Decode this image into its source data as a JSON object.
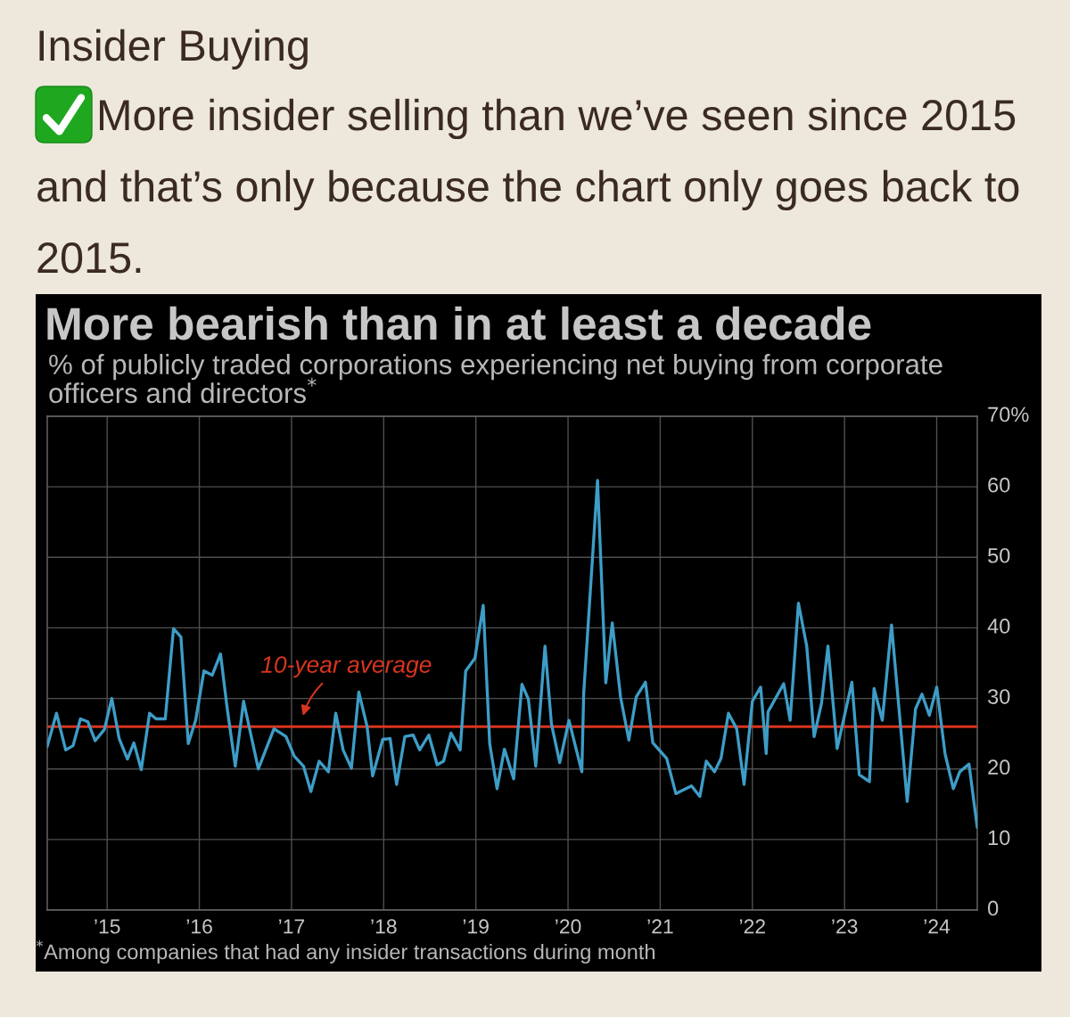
{
  "chart_data": {
    "type": "line",
    "title": "More bearish than in at least a decade",
    "subtitle": "% of publicly traded corporations experiencing net buying from corporate\nofficers and directors$^{*}$",
    "annotations": [
      "Insider Buying",
      "More insider selling than we’ve seen since 2015\nand that’s only because the chart only goes back to\n2015.",
      "$^{*}$Among companies that had any insider transactions during month"
    ],
    "x": [
      2014.35,
      2014.45,
      2014.55,
      2014.63,
      2014.71,
      2014.79,
      2014.87,
      2014.97,
      2015.05,
      2015.13,
      2015.22,
      2015.29,
      2015.37,
      2015.46,
      2015.53,
      2015.63,
      2015.72,
      2015.8,
      2015.88,
      2015.96,
      2016.05,
      2016.14,
      2016.23,
      2016.3,
      2016.39,
      2016.48,
      2016.64,
      2016.81,
      2016.94,
      2017.03,
      2017.13,
      2017.21,
      2017.3,
      2017.4,
      2017.48,
      2017.56,
      2017.65,
      2017.73,
      2017.82,
      2017.88,
      2017.99,
      2018.07,
      2018.14,
      2018.23,
      2018.32,
      2018.39,
      2018.49,
      2018.58,
      2018.65,
      2018.73,
      2018.83,
      2018.89,
      2018.99,
      2019.08,
      2019.15,
      2019.23,
      2019.31,
      2019.41,
      2019.5,
      2019.57,
      2019.65,
      2019.75,
      2019.82,
      2019.91,
      2020.01,
      2020.15,
      2020.17,
      2020.32,
      2020.41,
      2020.48,
      2020.57,
      2020.66,
      2020.74,
      2020.84,
      2020.92,
      2021.07,
      2021.17,
      2021.34,
      2021.43,
      2021.5,
      2021.59,
      2021.66,
      2021.74,
      2021.83,
      2021.91,
      2022.0,
      2022.09,
      2022.15,
      2022.17,
      2022.34,
      2022.41,
      2022.5,
      2022.59,
      2022.67,
      2022.75,
      2022.82,
      2022.92,
      2023.08,
      2023.16,
      2023.27,
      2023.32,
      2023.41,
      2023.51,
      2023.68,
      2023.77,
      2023.84,
      2023.92,
      2024.0,
      2024.09,
      2024.18,
      2024.25,
      2024.35,
      2024.44
    ],
    "series": [
      {
        "color": "#3d9dc7",
        "values": [
          23.2,
          27.9,
          22.7,
          23.3,
          27.1,
          26.7,
          24.0,
          25.6,
          30.0,
          24.3,
          21.4,
          23.7,
          19.9,
          27.9,
          27.1,
          27.1,
          39.9,
          38.7,
          23.6,
          26.9,
          33.9,
          33.3,
          36.3,
          28.8,
          20.4,
          29.6,
          20.0,
          25.7,
          24.6,
          21.8,
          20.4,
          16.8,
          21.1,
          19.6,
          27.9,
          22.7,
          20.1,
          30.9,
          26.0,
          19.0,
          24.2,
          24.3,
          17.8,
          24.6,
          24.8,
          22.7,
          24.8,
          20.6,
          21.1,
          25.1,
          22.7,
          33.9,
          35.7,
          43.2,
          23.6,
          17.2,
          22.8,
          18.6,
          32.0,
          29.9,
          20.4,
          37.4,
          26.4,
          20.9,
          26.9,
          19.6,
          30.7,
          60.9,
          32.2,
          40.7,
          30.2,
          24.1,
          30.2,
          32.3,
          23.7,
          21.5,
          16.5,
          17.6,
          16.1,
          21.1,
          19.6,
          21.5,
          27.9,
          25.7,
          17.8,
          29.6,
          31.6,
          22.2,
          28.1,
          32.1,
          26.9,
          43.5,
          37.4,
          24.6,
          29.3,
          37.4,
          22.9,
          32.3,
          19.2,
          18.2,
          31.4,
          26.9,
          40.4,
          15.4,
          28.5,
          30.6,
          27.6,
          31.6,
          22.2,
          17.2,
          19.6,
          20.7,
          11.7
        ]
      }
    ],
    "xlim": [
      2014.35,
      2024.44
    ],
    "xticks": [
      {
        "value": 2015,
        "label": "’15"
      },
      {
        "value": 2016,
        "label": "’16"
      },
      {
        "value": 2017,
        "label": "’17"
      },
      {
        "value": 2018,
        "label": "’18"
      },
      {
        "value": 2019,
        "label": "’19"
      },
      {
        "value": 2020,
        "label": "’20"
      },
      {
        "value": 2021,
        "label": "’21"
      },
      {
        "value": 2022,
        "label": "’22"
      },
      {
        "value": 2023,
        "label": "’23"
      },
      {
        "value": 2024,
        "label": "’24"
      }
    ],
    "ylim": [
      0,
      70
    ],
    "yticks": [
      0,
      10,
      20,
      30,
      40,
      50,
      60,
      {
        "value": 70,
        "label": "70%"
      }
    ],
    "ref_lines": [
      {
        "axis": "y",
        "value": 26,
        "label": "10-year average",
        "color": "#d8351f"
      }
    ],
    "grid": true
  }
}
